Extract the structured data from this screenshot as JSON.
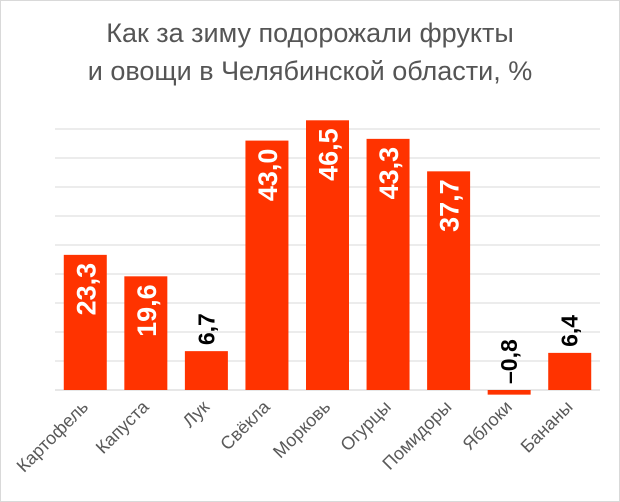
{
  "title_line1": "Как за зиму подорожали фрукты",
  "title_line2": "и овощи в Челябинской области, %",
  "colors": {
    "bar": "#ff3300",
    "label_inside": "#ffffff",
    "label_outside": "#000000",
    "grid": "#d9d9d9"
  },
  "chart_data": {
    "type": "bar",
    "title": "Как за зиму подорожали фрукты и овощи в Челябинской области, %",
    "categories": [
      "Картофель",
      "Капуста",
      "Лук",
      "Свёкла",
      "Морковь",
      "Огурцы",
      "Помидоры",
      "Яблоки",
      "Бананы"
    ],
    "values": [
      23.3,
      19.6,
      6.7,
      43.0,
      46.5,
      43.3,
      37.7,
      -0.8,
      6.4
    ],
    "value_labels": [
      "23,3",
      "19,6",
      "6,7",
      "43,0",
      "46,5",
      "43,3",
      "37,7",
      "–0,8",
      "6,4"
    ],
    "ylim": [
      -1,
      50
    ],
    "grid": true,
    "xlabel": "",
    "ylabel": ""
  }
}
